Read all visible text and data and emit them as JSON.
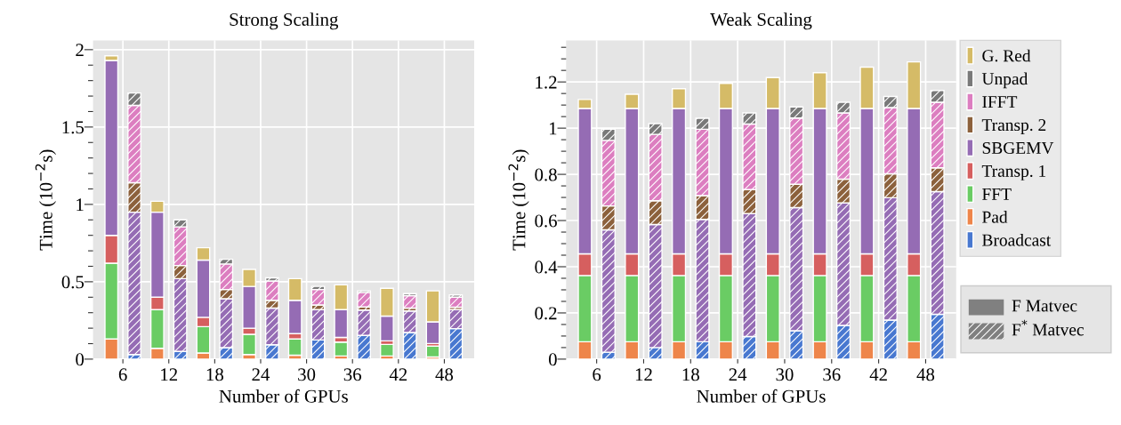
{
  "chart_data": [
    {
      "type": "bar",
      "stacked": true,
      "title": "Strong Scaling",
      "xlabel": "Number of GPUs",
      "ylabel": "Time (10$^{−2}$s)",
      "categories": [
        "6",
        null,
        "12",
        null,
        "18",
        null,
        "24",
        null,
        "30",
        null,
        "36",
        null,
        "42",
        null,
        "48",
        null
      ],
      "ylim": [
        0,
        2.06
      ],
      "yticks": [
        0,
        {
          "value": 0.1,
          "label": null
        },
        {
          "value": 0.2,
          "label": null
        },
        {
          "value": 0.3,
          "label": null
        },
        {
          "value": 0.4,
          "label": null
        },
        0.5,
        {
          "value": 0.6,
          "label": null
        },
        {
          "value": 0.7,
          "label": null
        },
        {
          "value": 0.8,
          "label": null
        },
        {
          "value": 0.9,
          "label": null
        },
        1,
        {
          "value": 1.1,
          "label": null
        },
        {
          "value": 1.2,
          "label": null
        },
        {
          "value": 1.3,
          "label": null
        },
        {
          "value": 1.4,
          "label": null
        },
        1.5,
        {
          "value": 1.6,
          "label": null
        },
        {
          "value": 1.7,
          "label": null
        },
        {
          "value": 1.8,
          "label": null
        },
        {
          "value": 1.9,
          "label": null
        },
        2
      ],
      "grid": true,
      "series": [
        {
          "color": "#4878d0",
          "values": [
            null,
            0.03,
            null,
            0.05,
            null,
            0.074,
            null,
            0.093,
            null,
            0.124,
            null,
            0.153,
            null,
            0.172,
            null,
            0.197
          ]
        },
        {
          "color": "#ee854a",
          "values": [
            0.13,
            null,
            0.07,
            null,
            0.04,
            null,
            0.03,
            null,
            0.025,
            null,
            0.02,
            null,
            0.02,
            null,
            0.014,
            null
          ]
        },
        {
          "color": "#6acc64",
          "values": [
            0.49,
            null,
            0.25,
            null,
            0.17,
            null,
            0.13,
            null,
            0.105,
            null,
            0.09,
            null,
            0.075,
            null,
            0.07,
            null
          ]
        },
        {
          "color": "#d65f5f",
          "values": [
            0.18,
            null,
            0.08,
            null,
            0.06,
            null,
            0.04,
            null,
            0.035,
            null,
            0.03,
            null,
            0.023,
            null,
            0.017,
            null
          ]
        },
        {
          "color": "#956cb4",
          "values": [
            1.13,
            0.92,
            0.55,
            0.47,
            0.37,
            0.316,
            0.27,
            0.237,
            0.215,
            0.196,
            0.18,
            0.164,
            0.16,
            0.139,
            0.14,
            0.123
          ]
        },
        {
          "color": "#8c613c",
          "values": [
            null,
            0.19,
            null,
            0.085,
            null,
            0.06,
            null,
            0.05,
            null,
            0.03,
            null,
            0.02,
            null,
            0.019,
            null,
            0.016
          ]
        },
        {
          "color": "#dc7ec0",
          "values": [
            null,
            0.5,
            null,
            0.25,
            null,
            0.165,
            null,
            0.125,
            null,
            0.1,
            null,
            0.094,
            null,
            0.08,
            null,
            0.064
          ]
        },
        {
          "color": "#797979",
          "values": [
            null,
            0.08,
            null,
            0.045,
            null,
            0.03,
            null,
            0.02,
            null,
            0.02,
            null,
            0.01,
            null,
            0.013,
            null,
            0.015
          ]
        },
        {
          "color": "#d5bb67",
          "values": [
            0.03,
            null,
            0.07,
            null,
            0.08,
            null,
            0.11,
            null,
            0.14,
            null,
            0.16,
            null,
            0.18,
            null,
            0.2,
            null
          ]
        }
      ]
    },
    {
      "type": "bar",
      "stacked": true,
      "title": "Weak Scaling",
      "xlabel": "Number of GPUs",
      "ylabel": "Time (10$^{−2}$s)",
      "categories": [
        "6",
        null,
        "12",
        null,
        "18",
        null,
        "24",
        null,
        "30",
        null,
        "36",
        null,
        "42",
        null,
        "48",
        null
      ],
      "ylim": [
        0,
        1.38
      ],
      "yticks": [
        0,
        {
          "value": 0.05,
          "label": null
        },
        {
          "value": 0.1,
          "label": null
        },
        {
          "value": 0.15,
          "label": null
        },
        0.2,
        {
          "value": 0.25,
          "label": null
        },
        {
          "value": 0.3,
          "label": null
        },
        {
          "value": 0.35,
          "label": null
        },
        0.4,
        {
          "value": 0.45,
          "label": null
        },
        {
          "value": 0.5,
          "label": null
        },
        {
          "value": 0.55,
          "label": null
        },
        0.6,
        {
          "value": 0.65,
          "label": null
        },
        {
          "value": 0.7,
          "label": null
        },
        {
          "value": 0.75,
          "label": null
        },
        0.8,
        {
          "value": 0.85,
          "label": null
        },
        {
          "value": 0.9,
          "label": null
        },
        {
          "value": 0.95,
          "label": null
        },
        1,
        {
          "value": 1.05,
          "label": null
        },
        {
          "value": 1.1,
          "label": null
        },
        {
          "value": 1.15,
          "label": null
        },
        1.2,
        {
          "value": 1.25,
          "label": null
        },
        {
          "value": 1.3,
          "label": null
        },
        {
          "value": 1.35,
          "label": null
        }
      ],
      "grid": true,
      "legend": "right",
      "annotations": [
        "F Matvec",
        "F$^{*}$ Matvec"
      ],
      "series": [
        {
          "name": "Broadcast",
          "color": "#4878d0",
          "values": [
            null,
            0.03,
            null,
            0.05,
            null,
            0.075,
            null,
            0.098,
            null,
            0.123,
            null,
            0.146,
            null,
            0.169,
            null,
            0.194
          ]
        },
        {
          "name": "Pad",
          "color": "#ee854a",
          "values": [
            0.075,
            null,
            0.075,
            null,
            0.075,
            null,
            0.075,
            null,
            0.075,
            null,
            0.075,
            null,
            0.075,
            null,
            0.075,
            null
          ]
        },
        {
          "name": "FFT",
          "color": "#6acc64",
          "values": [
            0.287,
            null,
            0.287,
            null,
            0.287,
            null,
            0.287,
            null,
            0.287,
            null,
            0.287,
            null,
            0.287,
            null,
            0.287,
            null
          ]
        },
        {
          "name": "Transp. 1",
          "color": "#d65f5f",
          "values": [
            0.094,
            null,
            0.094,
            null,
            0.094,
            null,
            0.094,
            null,
            0.094,
            null,
            0.094,
            null,
            0.094,
            null,
            0.094,
            null
          ]
        },
        {
          "name": "SBGEMV",
          "color": "#956cb4",
          "values": [
            0.629,
            0.53,
            0.629,
            0.533,
            0.629,
            0.53,
            0.629,
            0.532,
            0.629,
            0.533,
            0.629,
            0.53,
            0.629,
            0.53,
            0.629,
            0.531
          ]
        },
        {
          "name": "Transp. 2",
          "color": "#8c613c",
          "values": [
            null,
            0.103,
            null,
            0.103,
            null,
            0.103,
            null,
            0.104,
            null,
            0.101,
            null,
            0.103,
            null,
            0.103,
            null,
            0.103
          ]
        },
        {
          "name": "IFFT",
          "color": "#dc7ec0",
          "values": [
            null,
            0.284,
            null,
            0.287,
            null,
            0.287,
            null,
            0.284,
            null,
            0.287,
            null,
            0.287,
            null,
            0.287,
            null,
            0.284
          ]
        },
        {
          "name": "Unpad",
          "color": "#797979",
          "values": [
            null,
            0.048,
            null,
            0.047,
            null,
            0.048,
            null,
            0.048,
            null,
            0.048,
            null,
            0.046,
            null,
            0.048,
            null,
            0.051
          ]
        },
        {
          "name": "G. Red",
          "color": "#d5bb67",
          "values": [
            0.039,
            null,
            0.062,
            null,
            0.086,
            null,
            0.109,
            null,
            0.134,
            null,
            0.155,
            null,
            0.179,
            null,
            0.202,
            null
          ]
        }
      ]
    }
  ]
}
